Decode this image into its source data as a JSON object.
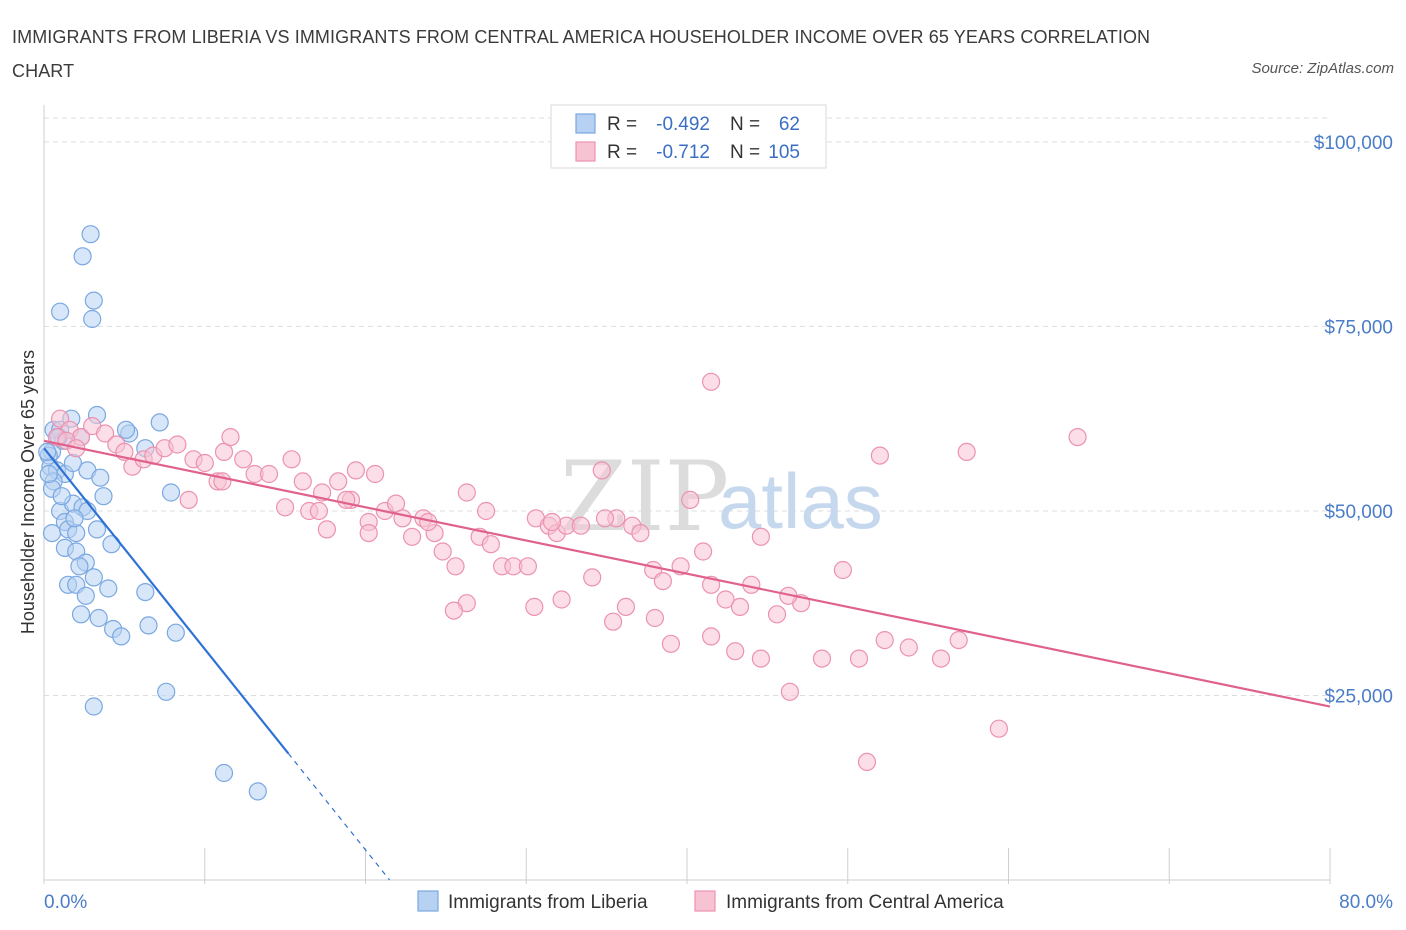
{
  "title": "IMMIGRANTS FROM LIBERIA VS IMMIGRANTS FROM CENTRAL AMERICA HOUSEHOLDER INCOME OVER 65 YEARS CORRELATION CHART",
  "source": "Source: ZipAtlas.com",
  "watermark": {
    "zip": "ZIP",
    "atlas": "atlas"
  },
  "legend": {
    "r_label": "R =",
    "n_label": "N =",
    "series": [
      {
        "r": "-0.492",
        "n": "62"
      },
      {
        "r": "-0.712",
        "n": "105"
      }
    ]
  },
  "colors": {
    "liberia_fill": "#b6d1f2",
    "liberia_stroke": "#7aa8e0",
    "liberia_line": "#2f72d6",
    "central_fill": "#f7c3d3",
    "central_stroke": "#ec92b0",
    "central_line": "#e0628c",
    "grid": "#dddddd",
    "axis_label": "#4a7cc7"
  },
  "chart_data": {
    "type": "scatter",
    "title": "IMMIGRANTS FROM LIBERIA VS IMMIGRANTS FROM CENTRAL AMERICA HOUSEHOLDER INCOME OVER 65 YEARS CORRELATION CHART",
    "xlabel": "",
    "ylabel": "Householder Income Over 65 years",
    "xlim": [
      0,
      80
    ],
    "ylim": [
      0,
      105000
    ],
    "x_tick_labels": {
      "left": "0.0%",
      "right": "80.0%"
    },
    "y_ticks": [
      {
        "value": 25000,
        "label": "$25,000"
      },
      {
        "value": 50000,
        "label": "$50,000"
      },
      {
        "value": 75000,
        "label": "$75,000"
      },
      {
        "value": 100000,
        "label": "$100,000"
      }
    ],
    "legend_position": "top-center",
    "series": [
      {
        "name": "Immigrants from Liberia",
        "R": -0.492,
        "N": 62,
        "trend": {
          "x_start": 0,
          "y_start": 58500,
          "x_solid_end": 15.2,
          "x_end": 21.5,
          "y_end": 0
        },
        "points": [
          [
            2.9,
            87500
          ],
          [
            2.4,
            84500
          ],
          [
            3.1,
            78500
          ],
          [
            1.0,
            77000
          ],
          [
            3.0,
            76000
          ],
          [
            0.5,
            58000
          ],
          [
            0.6,
            61000
          ],
          [
            1.0,
            61000
          ],
          [
            1.2,
            59500
          ],
          [
            0.3,
            57500
          ],
          [
            0.4,
            56000
          ],
          [
            0.8,
            55500
          ],
          [
            1.3,
            55000
          ],
          [
            1.8,
            56500
          ],
          [
            2.7,
            55500
          ],
          [
            0.6,
            54000
          ],
          [
            0.5,
            53000
          ],
          [
            3.5,
            54500
          ],
          [
            3.7,
            52000
          ],
          [
            7.9,
            52500
          ],
          [
            1.0,
            50000
          ],
          [
            1.8,
            51000
          ],
          [
            2.4,
            50500
          ],
          [
            2.7,
            50000
          ],
          [
            1.3,
            48500
          ],
          [
            0.5,
            47000
          ],
          [
            1.5,
            47500
          ],
          [
            2.0,
            47000
          ],
          [
            3.3,
            47500
          ],
          [
            4.2,
            45500
          ],
          [
            1.3,
            45000
          ],
          [
            2.0,
            44500
          ],
          [
            2.6,
            43000
          ],
          [
            2.2,
            42500
          ],
          [
            3.1,
            41000
          ],
          [
            1.5,
            40000
          ],
          [
            2.0,
            40000
          ],
          [
            4.0,
            39500
          ],
          [
            2.6,
            38500
          ],
          [
            6.3,
            39000
          ],
          [
            2.3,
            36000
          ],
          [
            3.4,
            35500
          ],
          [
            4.3,
            34000
          ],
          [
            6.5,
            34500
          ],
          [
            4.8,
            33000
          ],
          [
            8.2,
            33500
          ],
          [
            7.6,
            25500
          ],
          [
            3.1,
            23500
          ],
          [
            11.2,
            14500
          ],
          [
            13.3,
            12000
          ],
          [
            3.3,
            63000
          ],
          [
            5.3,
            60500
          ],
          [
            6.3,
            58500
          ],
          [
            7.2,
            62000
          ],
          [
            5.1,
            61000
          ],
          [
            2.3,
            60000
          ],
          [
            0.9,
            60000
          ],
          [
            1.7,
            62500
          ],
          [
            0.2,
            58000
          ],
          [
            1.1,
            52000
          ],
          [
            0.3,
            55000
          ],
          [
            1.9,
            49000
          ]
        ]
      },
      {
        "name": "Immigrants from Central America",
        "R": -0.712,
        "N": 105,
        "trend": {
          "x_start": 0,
          "y_start": 59500,
          "x_end": 80,
          "y_end": 23500
        },
        "points": [
          [
            1.0,
            62500
          ],
          [
            1.6,
            61000
          ],
          [
            2.3,
            60000
          ],
          [
            3.0,
            61500
          ],
          [
            3.8,
            60500
          ],
          [
            0.8,
            60000
          ],
          [
            1.4,
            59500
          ],
          [
            2.0,
            58500
          ],
          [
            4.5,
            59000
          ],
          [
            5.0,
            58000
          ],
          [
            5.5,
            56000
          ],
          [
            6.2,
            57000
          ],
          [
            6.8,
            57500
          ],
          [
            7.5,
            58500
          ],
          [
            8.3,
            59000
          ],
          [
            9.3,
            57000
          ],
          [
            10.0,
            56500
          ],
          [
            11.2,
            58000
          ],
          [
            11.6,
            60000
          ],
          [
            12.4,
            57000
          ],
          [
            13.1,
            55000
          ],
          [
            14.0,
            55000
          ],
          [
            15.4,
            57000
          ],
          [
            16.1,
            54000
          ],
          [
            17.3,
            52500
          ],
          [
            18.3,
            54000
          ],
          [
            19.4,
            55500
          ],
          [
            20.6,
            55000
          ],
          [
            9.0,
            51500
          ],
          [
            10.8,
            54000
          ],
          [
            11.1,
            54000
          ],
          [
            15.0,
            50500
          ],
          [
            16.5,
            50000
          ],
          [
            17.1,
            50000
          ],
          [
            17.6,
            47500
          ],
          [
            19.1,
            51500
          ],
          [
            20.2,
            48500
          ],
          [
            21.2,
            50000
          ],
          [
            21.9,
            51000
          ],
          [
            22.3,
            49000
          ],
          [
            22.9,
            46500
          ],
          [
            23.6,
            49000
          ],
          [
            24.3,
            47000
          ],
          [
            24.8,
            44500
          ],
          [
            25.6,
            42500
          ],
          [
            26.3,
            52500
          ],
          [
            27.1,
            46500
          ],
          [
            27.8,
            45500
          ],
          [
            27.5,
            50000
          ],
          [
            28.5,
            42500
          ],
          [
            29.2,
            42500
          ],
          [
            30.1,
            42500
          ],
          [
            30.6,
            49000
          ],
          [
            31.4,
            48000
          ],
          [
            31.9,
            47000
          ],
          [
            32.5,
            48000
          ],
          [
            33.4,
            48000
          ],
          [
            34.1,
            41000
          ],
          [
            34.7,
            55500
          ],
          [
            35.6,
            49000
          ],
          [
            36.6,
            48000
          ],
          [
            37.1,
            47000
          ],
          [
            37.9,
            42000
          ],
          [
            38.5,
            40500
          ],
          [
            39.6,
            42500
          ],
          [
            40.2,
            51500
          ],
          [
            41.0,
            44500
          ],
          [
            41.5,
            40000
          ],
          [
            42.4,
            38000
          ],
          [
            43.3,
            37000
          ],
          [
            44.0,
            40000
          ],
          [
            44.6,
            46500
          ],
          [
            45.6,
            36000
          ],
          [
            46.4,
            25500
          ],
          [
            47.1,
            37500
          ],
          [
            48.4,
            30000
          ],
          [
            49.7,
            42000
          ],
          [
            50.7,
            30000
          ],
          [
            51.2,
            16000
          ],
          [
            52.3,
            32500
          ],
          [
            53.8,
            31500
          ],
          [
            55.8,
            30000
          ],
          [
            56.9,
            32500
          ],
          [
            57.4,
            58000
          ],
          [
            59.4,
            20500
          ],
          [
            64.3,
            60000
          ],
          [
            44.6,
            30000
          ],
          [
            41.5,
            33000
          ],
          [
            43.0,
            31000
          ],
          [
            46.3,
            38500
          ],
          [
            39.0,
            32000
          ],
          [
            38.0,
            35500
          ],
          [
            36.2,
            37000
          ],
          [
            35.4,
            35000
          ],
          [
            32.2,
            38000
          ],
          [
            30.5,
            37000
          ],
          [
            26.3,
            37500
          ],
          [
            25.5,
            36500
          ],
          [
            31.6,
            48500
          ],
          [
            34.9,
            49000
          ],
          [
            23.9,
            48500
          ],
          [
            20.2,
            47000
          ],
          [
            18.8,
            51500
          ],
          [
            52.0,
            57500
          ],
          [
            41.5,
            67500
          ]
        ]
      }
    ]
  }
}
